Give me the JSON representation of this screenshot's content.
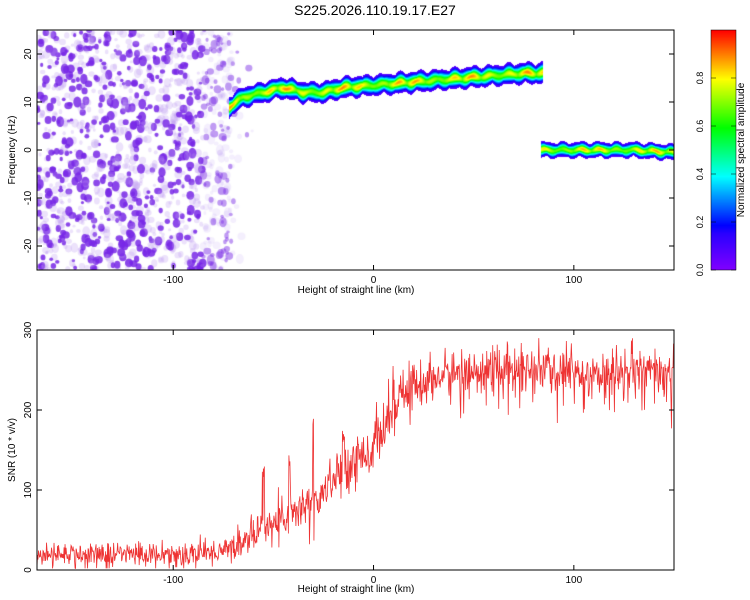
{
  "title": "S225.2026.110.19.17.E27",
  "chart_data": [
    {
      "type": "heatmap",
      "name": "spectrogram",
      "xlabel": "Height of straight line (km)",
      "ylabel": "Frequency (Hz)",
      "xlim": [
        -168,
        150
      ],
      "ylim": [
        -25,
        25
      ],
      "xticks": [
        -100,
        0,
        100
      ],
      "yticks": [
        -20,
        -10,
        0,
        10,
        20
      ],
      "colorbar": {
        "label": "Normalized spectral amplitude",
        "range": [
          0,
          1
        ],
        "ticks": [
          0,
          0.2,
          0.4,
          0.6,
          0.8
        ],
        "tick_labels": [
          "0.0",
          "0.2",
          "0.4",
          "0.6",
          "0.8"
        ]
      },
      "noise_region": {
        "x": [
          -168,
          -70
        ],
        "y": [
          -25,
          25
        ],
        "amplitude": [
          0.05,
          0.3
        ]
      },
      "tracks": [
        {
          "name": "carrier-upper",
          "points": [
            [
              -72,
              9
            ],
            [
              -65,
              11
            ],
            [
              -55,
              12
            ],
            [
              -45,
              13
            ],
            [
              -35,
              12
            ],
            [
              -25,
              12
            ],
            [
              -15,
              13
            ],
            [
              0,
              13.5
            ],
            [
              15,
              14
            ],
            [
              30,
              14.5
            ],
            [
              45,
              15
            ],
            [
              60,
              15.5
            ],
            [
              75,
              16
            ],
            [
              84,
              16
            ]
          ],
          "halfwidth": 1.2,
          "peak_amplitude": 0.9
        },
        {
          "name": "carrier-lower",
          "points": [
            [
              84,
              0
            ],
            [
              100,
              0
            ],
            [
              115,
              0
            ],
            [
              130,
              0
            ],
            [
              150,
              -0.5
            ]
          ],
          "halfwidth": 0.9,
          "peak_amplitude": 0.88
        }
      ]
    },
    {
      "type": "line",
      "name": "snr",
      "xlabel": "Height of straight line (km)",
      "ylabel": "SNR (10 * v/v)",
      "xlim": [
        -168,
        150
      ],
      "ylim": [
        0,
        300
      ],
      "xticks": [
        -100,
        0,
        100
      ],
      "yticks": [
        0,
        100,
        200,
        300
      ],
      "color": "#ee3333",
      "x_start": -168,
      "x_step": 0.25,
      "envelope": [
        [
          -168,
          20
        ],
        [
          -120,
          20
        ],
        [
          -80,
          22
        ],
        [
          -70,
          30
        ],
        [
          -60,
          45
        ],
        [
          -50,
          60
        ],
        [
          -40,
          70
        ],
        [
          -30,
          90
        ],
        [
          -20,
          115
        ],
        [
          -10,
          140
        ],
        [
          0,
          155
        ],
        [
          5,
          175
        ],
        [
          10,
          205
        ],
        [
          20,
          230
        ],
        [
          30,
          240
        ],
        [
          50,
          250
        ],
        [
          80,
          250
        ],
        [
          120,
          245
        ],
        [
          150,
          245
        ]
      ],
      "noise": [
        [
          -168,
          14
        ],
        [
          -70,
          15
        ],
        [
          -40,
          25
        ],
        [
          0,
          30
        ],
        [
          30,
          28
        ],
        [
          150,
          30
        ]
      ],
      "spikes": [
        [
          -55,
          135
        ],
        [
          -42,
          150
        ],
        [
          -30,
          190
        ],
        [
          -15,
          180
        ],
        [
          -8,
          175
        ]
      ]
    }
  ]
}
